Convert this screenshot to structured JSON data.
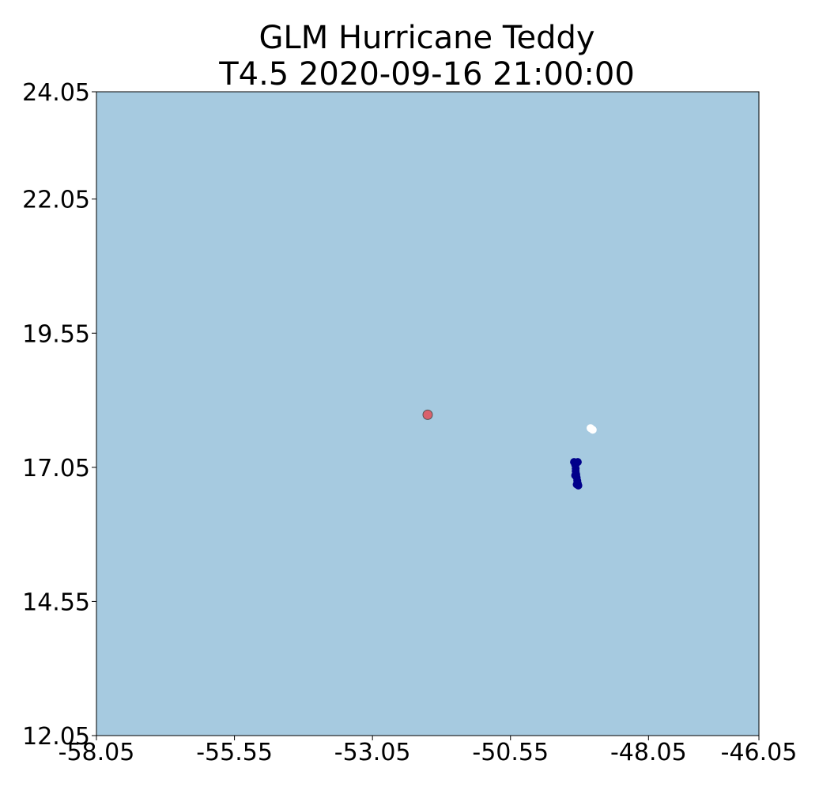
{
  "chart_data": {
    "type": "scatter",
    "title": [
      "GLM Hurricane Teddy",
      "T4.5 2020-09-16 21:00:00"
    ],
    "xlabel": "",
    "ylabel": "",
    "xlim": [
      -58.05,
      -46.05
    ],
    "ylim": [
      12.05,
      24.05
    ],
    "xticks": [
      "-58.05",
      "-55.55",
      "-53.05",
      "-50.55",
      "-48.05",
      "-46.05"
    ],
    "yticks": [
      "12.05",
      "14.55",
      "17.05",
      "19.55",
      "22.05",
      "24.05"
    ],
    "grid": false,
    "legend": "none",
    "background_color": "#a6cae0",
    "series": [
      {
        "color": "#00008b",
        "marker": "circle",
        "points": [
          [
            -49.4,
            17.15
          ],
          [
            -49.33,
            17.15
          ],
          [
            -49.36,
            17.12
          ],
          [
            -49.38,
            17.1
          ],
          [
            -49.37,
            17.03
          ],
          [
            -49.37,
            16.98
          ],
          [
            -49.36,
            16.92
          ],
          [
            -49.38,
            16.9
          ],
          [
            -49.35,
            16.86
          ],
          [
            -49.34,
            16.8
          ],
          [
            -49.33,
            16.75
          ],
          [
            -49.35,
            16.73
          ],
          [
            -49.32,
            16.71
          ]
        ]
      },
      {
        "color": "#ffffff",
        "marker": "circle",
        "points": [
          [
            -49.1,
            17.78
          ],
          [
            -49.06,
            17.75
          ]
        ]
      },
      {
        "color": "#d9616c",
        "marker": "circle",
        "points": [
          [
            -52.05,
            18.03
          ]
        ]
      }
    ]
  }
}
